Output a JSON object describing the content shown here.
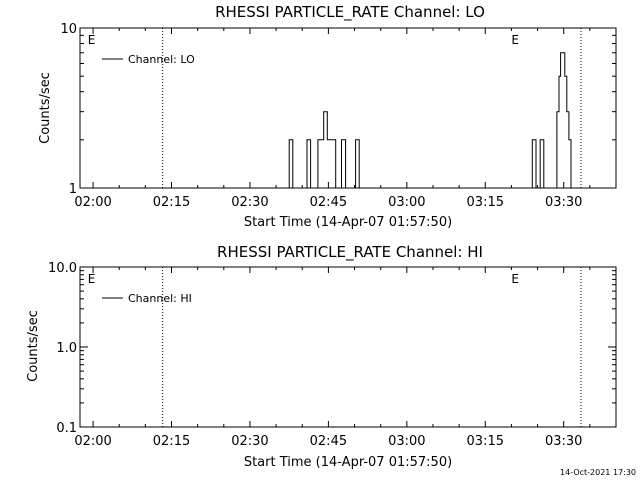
{
  "chart_data": [
    {
      "type": "line",
      "title": "RHESSI PARTICLE_RATE Channel: LO",
      "xlabel": "Start Time (14-Apr-07 01:57:50)",
      "ylabel": "Counts/sec",
      "y_scale": "log",
      "ylim": [
        1,
        10
      ],
      "y_ticks": [
        "1",
        "10"
      ],
      "x_ticks": [
        "02:00",
        "02:15",
        "02:30",
        "02:45",
        "03:00",
        "03:15",
        "03:30"
      ],
      "x_tick_minutes": [
        0,
        15,
        30,
        45,
        60,
        75,
        90
      ],
      "xlim_minutes": [
        -2.5,
        100
      ],
      "legend": {
        "label": "Channel: LO",
        "position": "top-left"
      },
      "grid": false,
      "markers": [
        {
          "label": "",
          "minute": 13.3
        },
        {
          "label": "E",
          "minute": -1.2
        },
        {
          "label": "E",
          "minute": 79.8
        },
        {
          "label": "",
          "minute": 93.3
        }
      ],
      "series": [
        {
          "name": "Channel: LO",
          "x_minutes": [
            37.2,
            37.5,
            37.9,
            38.2,
            40.6,
            40.9,
            41.3,
            41.6,
            42.4,
            42.7,
            43.0,
            43.4,
            43.7,
            44.1,
            44.4,
            44.8,
            45.2,
            45.6,
            46.0,
            46.4,
            46.8,
            47.5,
            47.9,
            48.3,
            48.7,
            49.0,
            49.4,
            49.8,
            50.2,
            50.5,
            50.9,
            51.3,
            51.7,
            52.1,
            52.5,
            52.9,
            53.3,
            83.6,
            84.0,
            84.4,
            84.7,
            85.1,
            85.5,
            85.8,
            86.2,
            86.6,
            88.3,
            88.7,
            89.1,
            89.4,
            89.8,
            90.2,
            90.6,
            91.0,
            91.4,
            91.7,
            92.1,
            92.5
          ],
          "values": [
            1,
            2,
            2,
            1,
            1,
            2,
            2,
            1,
            1,
            1,
            2,
            2,
            2,
            3,
            3,
            2,
            2,
            2,
            2,
            1,
            1,
            2,
            2,
            1,
            1,
            1,
            1,
            1,
            2,
            2,
            1,
            1,
            1,
            1,
            1,
            1,
            1,
            1,
            2,
            2,
            1,
            1,
            2,
            2,
            1,
            1,
            1,
            3,
            5,
            7,
            7,
            5,
            3,
            2,
            1,
            1,
            1,
            1
          ]
        }
      ]
    },
    {
      "type": "line",
      "title": "RHESSI PARTICLE_RATE Channel: HI",
      "xlabel": "Start Time (14-Apr-07 01:57:50)",
      "ylabel": "Counts/sec",
      "y_scale": "log",
      "ylim": [
        0.1,
        10
      ],
      "y_ticks": [
        "0.1",
        "1.0",
        "10.0"
      ],
      "x_ticks": [
        "02:00",
        "02:15",
        "02:30",
        "02:45",
        "03:00",
        "03:15",
        "03:30"
      ],
      "x_tick_minutes": [
        0,
        15,
        30,
        45,
        60,
        75,
        90
      ],
      "xlim_minutes": [
        -2.5,
        100
      ],
      "legend": {
        "label": "Channel: HI",
        "position": "top-left"
      },
      "grid": false,
      "markers": [
        {
          "label": "",
          "minute": 13.3
        },
        {
          "label": "E",
          "minute": -1.2
        },
        {
          "label": "E",
          "minute": 79.8
        },
        {
          "label": "",
          "minute": 93.3
        }
      ],
      "series": [
        {
          "name": "Channel: HI",
          "x_minutes": [],
          "values": []
        }
      ]
    }
  ],
  "footer": {
    "timestamp": "14-Oct-2021 17:30"
  }
}
